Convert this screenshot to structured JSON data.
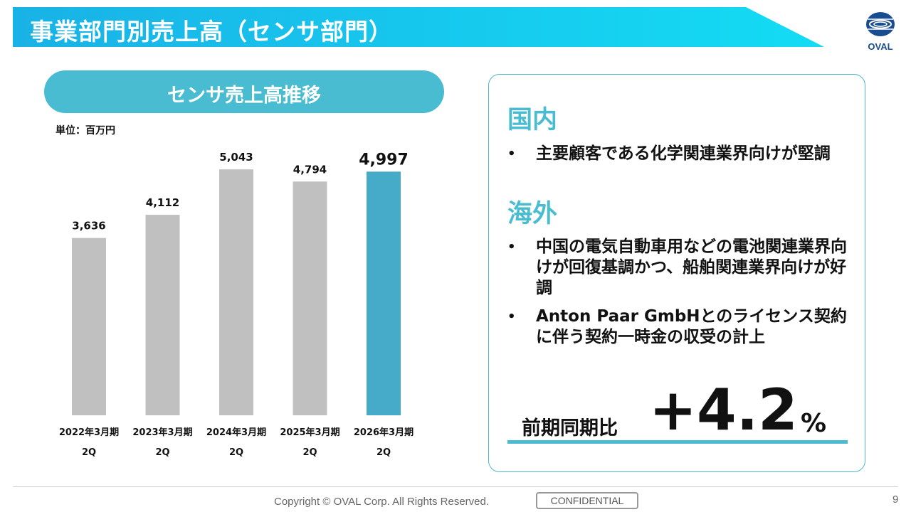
{
  "slide": {
    "title": "事業部門別売上高（センサ部門）",
    "logo_text": "OVAL",
    "page_number": "9"
  },
  "chart_panel": {
    "header": "センサ売上高推移",
    "unit": "単位：百万円"
  },
  "chart_data": {
    "type": "bar",
    "categories": [
      "2022年3月期",
      "2023年3月期",
      "2024年3月期",
      "2025年3月期",
      "2026年3月期"
    ],
    "category_sublabels": [
      "2Q",
      "2Q",
      "2Q",
      "2Q",
      "2Q"
    ],
    "values": [
      3636,
      4112,
      5043,
      4794,
      4997
    ],
    "value_labels": [
      "3,636",
      "4,112",
      "5,043",
      "4,794",
      "4,997"
    ],
    "highlight_index": 4,
    "ylim": [
      0,
      5600
    ],
    "colors": {
      "default": "#c0c0c0",
      "highlight": "#45abc8"
    },
    "grid": false
  },
  "commentary": {
    "domestic_title": "国内",
    "domestic_bullets": [
      "主要顧客である化学関連業界向けが堅調"
    ],
    "overseas_title": "海外",
    "overseas_bullets": [
      "中国の電気自動車用などの電池関連業界向けが回復基調かつ、船舶関連業界向けが好調",
      "Anton Paar GmbHとのライセンス契約に伴う契約一時金の収受の計上"
    ],
    "bullet_marker": "•",
    "yoy_label": "前期同期比",
    "yoy_value": "+4.2",
    "yoy_unit": "%"
  },
  "footer": {
    "copyright": "Copyright © OVAL Corp. All Rights Reserved.",
    "confidential": "CONFIDENTIAL"
  },
  "colors": {
    "title_gradient_start": "#1fb8e8",
    "title_gradient_end": "#0fd5f2",
    "accent": "#49bcd1"
  }
}
